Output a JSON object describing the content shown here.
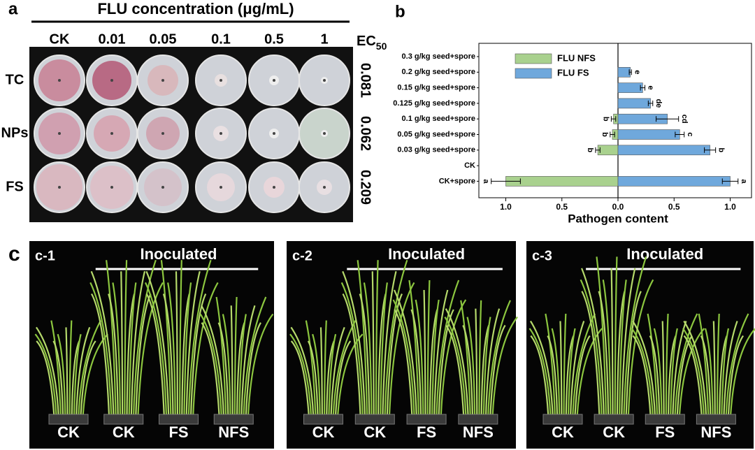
{
  "panel_a": {
    "label": "a",
    "title": "FLU concentration (μg/mL)",
    "columns": [
      "CK",
      "0.01",
      "0.05",
      "0.1",
      "0.5",
      "1"
    ],
    "ec50_label": "EC",
    "ec50_sub": "50",
    "rows": [
      {
        "label": "TC",
        "ec50": 0.081
      },
      {
        "label": "NPs",
        "ec50": 0.062
      },
      {
        "label": "FS",
        "ec50": 0.209
      }
    ]
  },
  "chart_data": {
    "type": "diverging-bar",
    "panel_label": "b",
    "xlabel": "Pathogen content",
    "categories": [
      "0.3 g/kg seed+spore",
      "0.2 g/kg seed+spore",
      "0.15 g/kg seed+spore",
      "0.125 g/kg seed+spore",
      "0.1 g/kg seed+spore",
      "0.05 g/kg seed+spore",
      "0.03 g/kg seed+spore",
      "CK",
      "CK+spore"
    ],
    "series": [
      {
        "name": "FLU NFS",
        "color": "#a9d18e",
        "values": [
          0,
          0,
          0,
          0,
          -0.04,
          -0.05,
          -0.18,
          0,
          -1.0
        ],
        "errors": [
          null,
          null,
          null,
          null,
          0.02,
          0.02,
          0.02,
          null,
          0.13
        ],
        "letters": [
          null,
          null,
          null,
          null,
          "b",
          "b",
          "b",
          null,
          "a"
        ]
      },
      {
        "name": "FLU FS",
        "color": "#6fa8dc",
        "values": [
          0,
          0.11,
          0.22,
          0.29,
          0.44,
          0.55,
          0.82,
          0,
          1.0
        ],
        "errors": [
          null,
          0.01,
          0.02,
          0.02,
          0.1,
          0.04,
          0.05,
          null,
          0.07
        ],
        "letters": [
          null,
          "e",
          "e",
          "de",
          "cd",
          "c",
          "b",
          null,
          "a"
        ]
      }
    ],
    "xlim": [
      -1.24,
      1.19
    ],
    "xticks": [
      {
        "value": -1,
        "label": "1.0"
      },
      {
        "value": -0.5,
        "label": "0.5"
      },
      {
        "value": 0,
        "label": "0.0"
      },
      {
        "value": 0.5,
        "label": "0.5"
      },
      {
        "value": 1,
        "label": "1.0"
      }
    ],
    "legend": "upper-left"
  },
  "panel_c": {
    "label": "c",
    "photos": [
      {
        "label": "c-1",
        "header": "Inoculated",
        "plants": [
          "CK",
          "CK",
          "FS",
          "NFS"
        ]
      },
      {
        "label": "c-2",
        "header": "Inoculated",
        "plants": [
          "CK",
          "CK",
          "FS",
          "NFS"
        ]
      },
      {
        "label": "c-3",
        "header": "Inoculated",
        "plants": [
          "CK",
          "CK",
          "FS",
          "NFS"
        ]
      }
    ]
  }
}
